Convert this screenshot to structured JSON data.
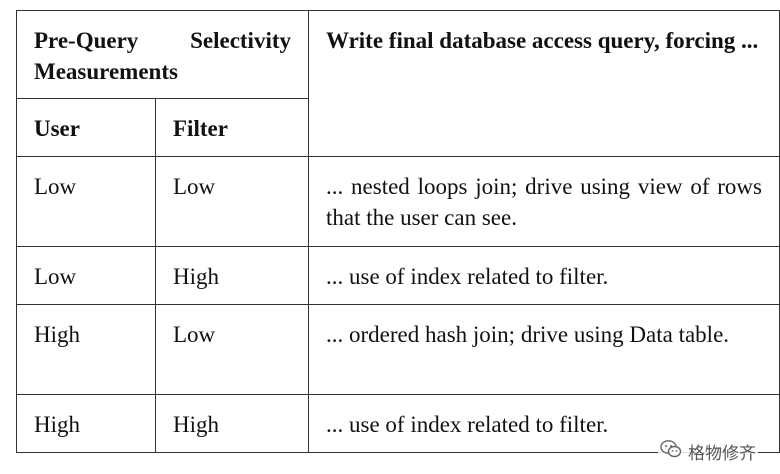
{
  "header": {
    "measurements": "Pre-Query Selectivity Measurements",
    "query": "Write final database access query, forcing ...",
    "user": "User",
    "filter": "Filter"
  },
  "rows": [
    {
      "user": "Low",
      "filter": "Low",
      "action": "... nested loops join; drive using view of rows that the user can see."
    },
    {
      "user": "Low",
      "filter": "High",
      "action": "... use of index related to filter."
    },
    {
      "user": "High",
      "filter": "Low",
      "action": "... ordered hash join; drive using Data table."
    },
    {
      "user": "High",
      "filter": "High",
      "action": "... use of index related to filter."
    }
  ],
  "watermark": {
    "text": "格物修齐",
    "icon": "wechat-icon"
  }
}
